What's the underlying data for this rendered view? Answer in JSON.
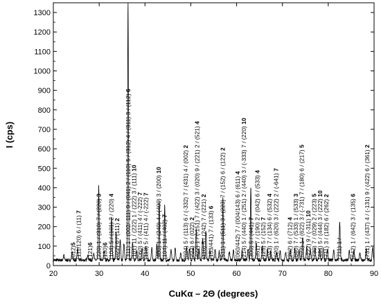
{
  "chart_data": {
    "type": "line",
    "xlabel": "CuKα – 2Θ (degrees)",
    "ylabel": "I (cps)",
    "xlim": [
      20,
      90
    ],
    "ylim": [
      0,
      1350
    ],
    "xticks": [
      20,
      30,
      40,
      50,
      60,
      70,
      80,
      90
    ],
    "yticks": [
      0,
      100,
      200,
      300,
      400,
      500,
      600,
      700,
      800,
      900,
      1000,
      1100,
      1200,
      1300
    ],
    "grid": false,
    "line_color": "#000000",
    "peaks": [
      [
        22.3,
        25
      ],
      [
        24.1,
        45
      ],
      [
        25.3,
        60
      ],
      [
        27.5,
        30
      ],
      [
        28.8,
        40
      ],
      [
        29.9,
        380
      ],
      [
        31.1,
        50
      ],
      [
        32.7,
        220
      ],
      [
        33.7,
        150
      ],
      [
        34.6,
        110
      ],
      [
        35.4,
        90
      ],
      [
        36.3,
        1330
      ],
      [
        37.3,
        90
      ],
      [
        38.2,
        50
      ],
      [
        39.4,
        60
      ],
      [
        40.2,
        70
      ],
      [
        41.5,
        60
      ],
      [
        42.6,
        80
      ],
      [
        43.1,
        300
      ],
      [
        44.3,
        280
      ],
      [
        45.7,
        50
      ],
      [
        46.6,
        60
      ],
      [
        47.8,
        40
      ],
      [
        49.1,
        70
      ],
      [
        49.7,
        55
      ],
      [
        50.5,
        60
      ],
      [
        51.2,
        160
      ],
      [
        51.8,
        65
      ],
      [
        52.6,
        110
      ],
      [
        53.3,
        150
      ],
      [
        54.2,
        50
      ],
      [
        55.3,
        55
      ],
      [
        56.2,
        45
      ],
      [
        57.0,
        320
      ],
      [
        58.4,
        45
      ],
      [
        59.3,
        50
      ],
      [
        61.2,
        50
      ],
      [
        62.5,
        55
      ],
      [
        63.1,
        380
      ],
      [
        64.3,
        90
      ],
      [
        65.6,
        70
      ],
      [
        66.7,
        55
      ],
      [
        67.5,
        45
      ],
      [
        68.7,
        40
      ],
      [
        69.5,
        50
      ],
      [
        70.7,
        45
      ],
      [
        71.7,
        50
      ],
      [
        72.7,
        60
      ],
      [
        73.6,
        50
      ],
      [
        74.4,
        120
      ],
      [
        75.3,
        70
      ],
      [
        76.1,
        55
      ],
      [
        77.1,
        60
      ],
      [
        78.1,
        55
      ],
      [
        78.9,
        60
      ],
      [
        79.8,
        50
      ],
      [
        81.2,
        55
      ],
      [
        82.5,
        200
      ],
      [
        84.6,
        45
      ],
      [
        85.6,
        50
      ],
      [
        86.9,
        40
      ],
      [
        88.3,
        55
      ],
      [
        89.7,
        70
      ]
    ],
    "annotations": [
      {
        "x": 24.3,
        "idx": "(012)",
        "num": "5"
      },
      {
        "x": 25.5,
        "idx": "(111/120) 6 / (11) ",
        "num": "7"
      },
      {
        "x": 28.0,
        "idx": "(121)",
        "num": "6"
      },
      {
        "x": 29.9,
        "idx": "(220) 1 / (310) 7 / (220) ",
        "num": "3"
      },
      {
        "x": 31.3,
        "idx": "(130)",
        "num": "6"
      },
      {
        "x": 32.6,
        "idx": "(104) 5 / (101) 2 / (220) ",
        "num": "4"
      },
      {
        "x": 33.9,
        "idx": "(022) 6 / (111) ",
        "num": "2"
      },
      {
        "x": 36.3,
        "idx": "(311) 1 / (002/-111) 9 / (041) 2 / (110) 5 / (312) 4 / (311) 3 / (112) ",
        "num": "6"
      },
      {
        "x": 37.6,
        "idx": "(101) 11 / (222) 1 / (222) 3 / (111) ",
        "num": "10"
      },
      {
        "x": 38.9,
        "idx": "(060) 5 / (411) 4 / (-222) ",
        "num": "7"
      },
      {
        "x": 40.2,
        "idx": "(113) 5 / (411) 4 / (-222) ",
        "num": "7"
      },
      {
        "x": 43.0,
        "idx": "(400) 1 / (240) 4 / (400) 3 / (200) ",
        "num": "10"
      },
      {
        "x": 44.3,
        "idx": "(104) 11 / (402) ",
        "num": "7"
      },
      {
        "x": 48.9,
        "idx": "(024) 5 / (113) 6 / (-332) 7 / (431) 4 / (002) ",
        "num": "2"
      },
      {
        "x": 50.2,
        "idx": "(222) 6 / (022) ",
        "num": "2"
      },
      {
        "x": 51.4,
        "idx": "(422) 1 / (-151) 7 / (422) 3 / (020) 9 / (221) 2 / (521) ",
        "num": "4"
      },
      {
        "x": 52.8,
        "idx": "(116) 5 / (242) 7 / (221) ",
        "num": "2"
      },
      {
        "x": 54.4,
        "idx": "(153/441) 7 / (133) ",
        "num": "6"
      },
      {
        "x": 57.0,
        "idx": "(511) 1 / (511) 3 / (223) 7 / (152) 6 / (122) ",
        "num": "2"
      },
      {
        "x": 60.2,
        "idx": "(060/442) 7 / (004/143) 6 / (611) ",
        "num": "4"
      },
      {
        "x": 61.6,
        "idx": "(214) 5 / (440) 1 / (251) 2 / (440) 3 / (-333) 7 / (220) ",
        "num": "10"
      },
      {
        "x": 63.2,
        "idx": "(300) 5 / (441) ",
        "num": "7"
      },
      {
        "x": 64.5,
        "idx": "(351) 7 / (190) 2 / (042) 6 / (533) ",
        "num": "4"
      },
      {
        "x": 65.8,
        "idx": "(125) 5 / (152) ",
        "num": "7"
      },
      {
        "x": 67.2,
        "idx": "(043) 7 / (134) 6 / (532) ",
        "num": "4"
      },
      {
        "x": 68.6,
        "idx": "(620) 1 / (620) 3 / (222) 2 / (-641) ",
        "num": "7"
      },
      {
        "x": 71.6,
        "idx": "(262) 6 / (712) ",
        "num": "4"
      },
      {
        "x": 72.9,
        "idx": "(640) 7 / (533) 1 / (533) ",
        "num": "3"
      },
      {
        "x": 74.2,
        "idx": "(622) 1 / (622) 3 / (-731) 7 / (180) 6 / (217) ",
        "num": "5"
      },
      {
        "x": 75.6,
        "idx": "(-222) 9 / (-311) ",
        "num": "10"
      },
      {
        "x": 76.9,
        "idx": "(730) 7 / (029) 2 / (223) ",
        "num": "5"
      },
      {
        "x": 78.2,
        "idx": "(444) 5 / (444) 3 / (222) ",
        "num": "10"
      },
      {
        "x": 79.6,
        "idx": "(711) 3 / (182) 6 / (262) ",
        "num": "2"
      },
      {
        "x": 82.4,
        "idx": "(711) 1 / ",
        "num": ""
      },
      {
        "x": 85.4,
        "idx": "(642) 1 / (642) 3 / (135) ",
        "num": "6"
      },
      {
        "x": 88.5,
        "idx": "(731) 1 / (437) 4 / (-131) 9 / (422) 6 / (361) ",
        "num": "2"
      }
    ]
  }
}
